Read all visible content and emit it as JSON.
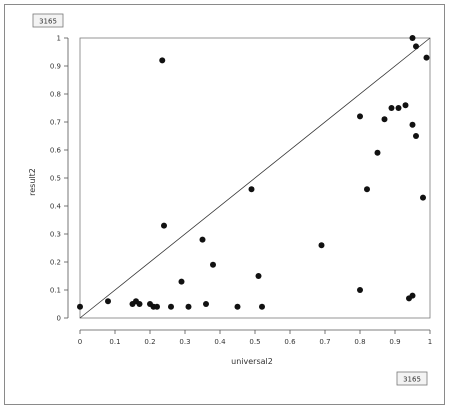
{
  "chart_data": {
    "type": "scatter",
    "title": "",
    "xlabel": "universal2",
    "ylabel": "result2",
    "xlim": [
      0,
      1
    ],
    "ylim": [
      0,
      1
    ],
    "grid": false,
    "reference_line": {
      "x": [
        0,
        1
      ],
      "y": [
        0,
        1
      ]
    },
    "x_ticks": [
      "0",
      "0.1",
      "0.2",
      "0.3",
      "0.4",
      "0.5",
      "0.6",
      "0.7",
      "0.8",
      "0.9",
      "1"
    ],
    "y_ticks": [
      "0",
      "0.1",
      "0.2",
      "0.3",
      "0.4",
      "0.5",
      "0.6",
      "0.7",
      "0.8",
      "0.9",
      "1"
    ],
    "points": [
      {
        "x": 0.0,
        "y": 0.04
      },
      {
        "x": 0.08,
        "y": 0.06
      },
      {
        "x": 0.15,
        "y": 0.05
      },
      {
        "x": 0.16,
        "y": 0.06
      },
      {
        "x": 0.17,
        "y": 0.05
      },
      {
        "x": 0.2,
        "y": 0.05
      },
      {
        "x": 0.21,
        "y": 0.04
      },
      {
        "x": 0.22,
        "y": 0.04
      },
      {
        "x": 0.235,
        "y": 0.92
      },
      {
        "x": 0.24,
        "y": 0.33
      },
      {
        "x": 0.26,
        "y": 0.04
      },
      {
        "x": 0.29,
        "y": 0.13
      },
      {
        "x": 0.31,
        "y": 0.04
      },
      {
        "x": 0.35,
        "y": 0.28
      },
      {
        "x": 0.36,
        "y": 0.05
      },
      {
        "x": 0.38,
        "y": 0.19
      },
      {
        "x": 0.45,
        "y": 0.04
      },
      {
        "x": 0.49,
        "y": 0.46
      },
      {
        "x": 0.51,
        "y": 0.15
      },
      {
        "x": 0.52,
        "y": 0.04
      },
      {
        "x": 0.69,
        "y": 0.26
      },
      {
        "x": 0.8,
        "y": 0.1
      },
      {
        "x": 0.8,
        "y": 0.72
      },
      {
        "x": 0.82,
        "y": 0.46
      },
      {
        "x": 0.85,
        "y": 0.59
      },
      {
        "x": 0.87,
        "y": 0.71
      },
      {
        "x": 0.89,
        "y": 0.75
      },
      {
        "x": 0.91,
        "y": 0.75
      },
      {
        "x": 0.93,
        "y": 0.76
      },
      {
        "x": 0.94,
        "y": 0.07
      },
      {
        "x": 0.95,
        "y": 0.08
      },
      {
        "x": 0.95,
        "y": 0.69
      },
      {
        "x": 0.96,
        "y": 0.65
      },
      {
        "x": 0.95,
        "y": 1.0
      },
      {
        "x": 0.96,
        "y": 0.97
      },
      {
        "x": 0.98,
        "y": 0.43
      },
      {
        "x": 0.99,
        "y": 0.93
      }
    ],
    "corner_badges": {
      "top_left": "3165",
      "bottom_right": "3165"
    }
  }
}
